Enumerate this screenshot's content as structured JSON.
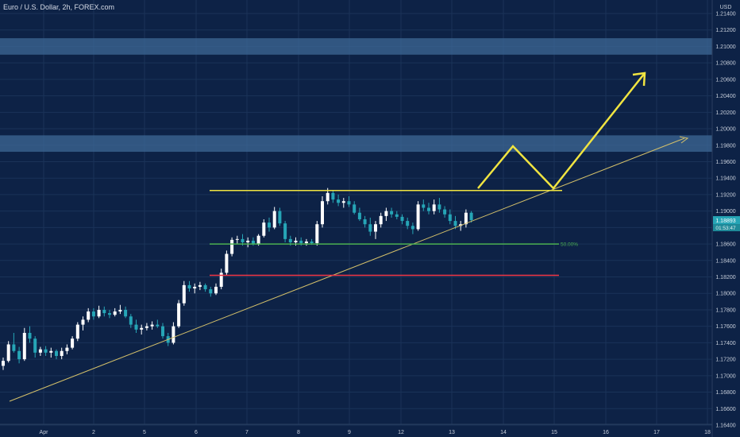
{
  "chart_data": {
    "type": "candlestick",
    "title": "Euro / U.S. Dollar, 2h, FOREX.com",
    "currency": "USD",
    "price_tag": "1.18893",
    "countdown_tag": "01:53:47",
    "fib_label": "50.00%",
    "y_ticks": [
      "1.21400",
      "1.21200",
      "1.21000",
      "1.20800",
      "1.20600",
      "1.20400",
      "1.20200",
      "1.20000",
      "1.19800",
      "1.19600",
      "1.19400",
      "1.19200",
      "1.19000",
      "1.18800",
      "1.18600",
      "1.18400",
      "1.18200",
      "1.18000",
      "1.17800",
      "1.17600",
      "1.17400",
      "1.17200",
      "1.17000",
      "1.16800",
      "1.16600",
      "1.16400"
    ],
    "x_ticks": [
      "Apr",
      "2",
      "5",
      "6",
      "7",
      "8",
      "9",
      "12",
      "13",
      "14",
      "15",
      "16",
      "17",
      "18"
    ],
    "ylim": [
      1.164,
      1.214
    ],
    "candles": [
      [
        1.1712,
        1.1722,
        1.1707,
        1.1718
      ],
      [
        1.1718,
        1.1742,
        1.1716,
        1.1738
      ],
      [
        1.1738,
        1.1752,
        1.1728,
        1.173
      ],
      [
        1.173,
        1.1735,
        1.1715,
        1.172
      ],
      [
        1.172,
        1.1758,
        1.1718,
        1.1752
      ],
      [
        1.1752,
        1.176,
        1.174,
        1.1745
      ],
      [
        1.1745,
        1.1748,
        1.1722,
        1.1728
      ],
      [
        1.1728,
        1.1735,
        1.1724,
        1.1732
      ],
      [
        1.1732,
        1.1736,
        1.1724,
        1.1728
      ],
      [
        1.1728,
        1.1734,
        1.1722,
        1.173
      ],
      [
        1.173,
        1.1732,
        1.172,
        1.1724
      ],
      [
        1.1724,
        1.1734,
        1.172,
        1.173
      ],
      [
        1.173,
        1.1738,
        1.1726,
        1.1734
      ],
      [
        1.1734,
        1.1748,
        1.1732,
        1.1745
      ],
      [
        1.1745,
        1.1765,
        1.1742,
        1.1762
      ],
      [
        1.1762,
        1.1772,
        1.1755,
        1.1768
      ],
      [
        1.1768,
        1.1782,
        1.1765,
        1.1778
      ],
      [
        1.1778,
        1.1782,
        1.1768,
        1.1772
      ],
      [
        1.1772,
        1.1785,
        1.177,
        1.178
      ],
      [
        1.178,
        1.1784,
        1.1772,
        1.1776
      ],
      [
        1.1776,
        1.178,
        1.177,
        1.1774
      ],
      [
        1.1774,
        1.1782,
        1.1772,
        1.1778
      ],
      [
        1.1778,
        1.1786,
        1.1775,
        1.178
      ],
      [
        1.178,
        1.1784,
        1.177,
        1.1772
      ],
      [
        1.1772,
        1.1775,
        1.1758,
        1.1762
      ],
      [
        1.1762,
        1.1768,
        1.1752,
        1.1756
      ],
      [
        1.1756,
        1.1762,
        1.175,
        1.1758
      ],
      [
        1.1758,
        1.1764,
        1.1755,
        1.176
      ],
      [
        1.176,
        1.1766,
        1.1756,
        1.1762
      ],
      [
        1.1762,
        1.1768,
        1.1758,
        1.176
      ],
      [
        1.176,
        1.1764,
        1.1745,
        1.1748
      ],
      [
        1.1748,
        1.1752,
        1.1736,
        1.174
      ],
      [
        1.174,
        1.1765,
        1.1738,
        1.176
      ],
      [
        1.176,
        1.1792,
        1.1758,
        1.1788
      ],
      [
        1.1788,
        1.1815,
        1.1785,
        1.181
      ],
      [
        1.181,
        1.1815,
        1.1802,
        1.1806
      ],
      [
        1.1806,
        1.1812,
        1.18,
        1.1808
      ],
      [
        1.1808,
        1.1814,
        1.1804,
        1.181
      ],
      [
        1.181,
        1.1812,
        1.1802,
        1.1805
      ],
      [
        1.1805,
        1.1808,
        1.1796,
        1.18
      ],
      [
        1.18,
        1.1812,
        1.1798,
        1.1808
      ],
      [
        1.1808,
        1.183,
        1.1805,
        1.1825
      ],
      [
        1.1825,
        1.1852,
        1.1822,
        1.1848
      ],
      [
        1.1848,
        1.1868,
        1.1845,
        1.1865
      ],
      [
        1.1865,
        1.187,
        1.186,
        1.1866
      ],
      [
        1.1866,
        1.1872,
        1.1858,
        1.1862
      ],
      [
        1.1862,
        1.1868,
        1.1856,
        1.1864
      ],
      [
        1.1864,
        1.1868,
        1.1858,
        1.186
      ],
      [
        1.186,
        1.1872,
        1.1858,
        1.187
      ],
      [
        1.187,
        1.189,
        1.1868,
        1.1886
      ],
      [
        1.1886,
        1.1892,
        1.1875,
        1.188
      ],
      [
        1.188,
        1.1905,
        1.1878,
        1.19
      ],
      [
        1.19,
        1.1904,
        1.1882,
        1.1885
      ],
      [
        1.1885,
        1.1888,
        1.1862,
        1.1866
      ],
      [
        1.1866,
        1.187,
        1.1858,
        1.1862
      ],
      [
        1.1862,
        1.1868,
        1.1858,
        1.1864
      ],
      [
        1.1864,
        1.1868,
        1.1858,
        1.1861
      ],
      [
        1.1861,
        1.1866,
        1.1858,
        1.1863
      ],
      [
        1.1863,
        1.1866,
        1.1859,
        1.1861
      ],
      [
        1.1861,
        1.1888,
        1.1858,
        1.1884
      ],
      [
        1.1884,
        1.1918,
        1.188,
        1.1912
      ],
      [
        1.1912,
        1.1928,
        1.1908,
        1.1922
      ],
      [
        1.1922,
        1.1925,
        1.191,
        1.1914
      ],
      [
        1.1914,
        1.192,
        1.1906,
        1.191
      ],
      [
        1.191,
        1.1916,
        1.1904,
        1.1912
      ],
      [
        1.1912,
        1.1918,
        1.1905,
        1.1908
      ],
      [
        1.1908,
        1.1912,
        1.1896,
        1.1898
      ],
      [
        1.1898,
        1.1904,
        1.1888,
        1.189
      ],
      [
        1.189,
        1.1894,
        1.188,
        1.1884
      ],
      [
        1.1884,
        1.1892,
        1.187,
        1.1875
      ],
      [
        1.1875,
        1.1888,
        1.1866,
        1.1884
      ],
      [
        1.1884,
        1.1898,
        1.188,
        1.1894
      ],
      [
        1.1894,
        1.1904,
        1.1888,
        1.19
      ],
      [
        1.19,
        1.1904,
        1.1892,
        1.1896
      ],
      [
        1.1896,
        1.19,
        1.189,
        1.1893
      ],
      [
        1.1893,
        1.1896,
        1.1884,
        1.1888
      ],
      [
        1.1888,
        1.1892,
        1.1878,
        1.1882
      ],
      [
        1.1882,
        1.1886,
        1.1872,
        1.1878
      ],
      [
        1.1878,
        1.1912,
        1.1876,
        1.1908
      ],
      [
        1.1908,
        1.1914,
        1.19,
        1.1904
      ],
      [
        1.1904,
        1.191,
        1.1896,
        1.19
      ],
      [
        1.19,
        1.1914,
        1.1896,
        1.1908
      ],
      [
        1.1908,
        1.1916,
        1.1898,
        1.1902
      ],
      [
        1.1902,
        1.1906,
        1.1892,
        1.1896
      ],
      [
        1.1896,
        1.1902,
        1.1884,
        1.1888
      ],
      [
        1.1888,
        1.1894,
        1.1878,
        1.1882
      ],
      [
        1.1882,
        1.1888,
        1.1876,
        1.1884
      ],
      [
        1.1884,
        1.1902,
        1.188,
        1.1898
      ],
      [
        1.1898,
        1.19,
        1.1886,
        1.1889
      ]
    ],
    "zones": [
      {
        "from": 1.209,
        "to": 1.211
      },
      {
        "from": 1.1972,
        "to": 1.1992
      }
    ],
    "levels": [
      {
        "name": "resistance",
        "value": 1.1925,
        "color": "#f0e441"
      },
      {
        "name": "fib-50",
        "value": 1.186,
        "color": "#4caf50"
      },
      {
        "name": "support",
        "value": 1.1822,
        "color": "#f23645"
      }
    ],
    "colors": {
      "bull": "#ffffff",
      "bear": "#26a5b6",
      "trend": "#d4c06a",
      "arrow": "#f0e441",
      "grid": "#1a3358",
      "zone": "#3e6896"
    }
  }
}
